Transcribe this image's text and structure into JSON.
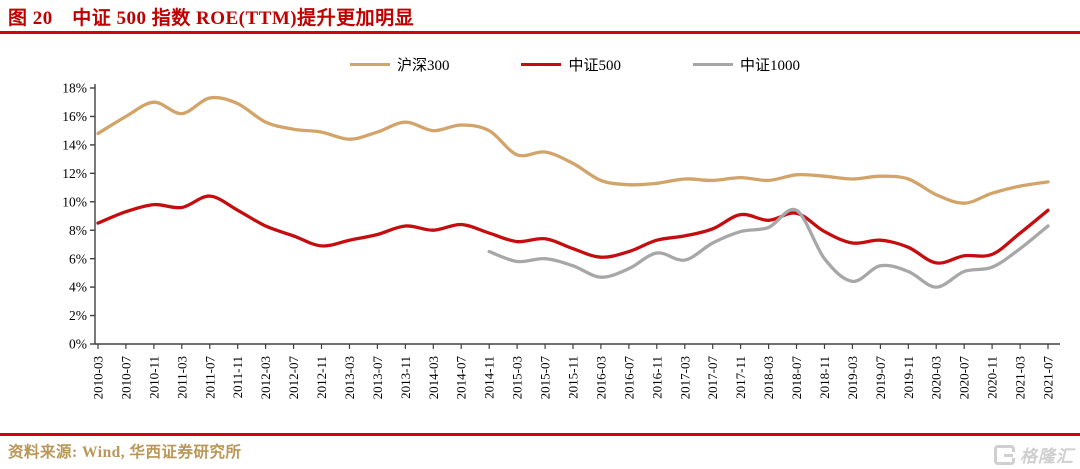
{
  "page": {
    "title": "图 20　中证 500 指数 ROE(TTM)提升更加明显"
  },
  "footer": {
    "source": "资料来源: Wind, 华西证券研究所"
  },
  "watermark": {
    "text": "格隆汇"
  },
  "colors": {
    "title_red": "#C00000",
    "rule_red": "#D40404",
    "axis_gray": "#404040",
    "source_gold": "#BA9657",
    "watermark_gray": "#CFCFCF"
  },
  "chart_data": {
    "type": "line",
    "title": "中证500指数ROE(TTM)提升更加明显",
    "xlabel": "",
    "ylabel": "",
    "y_format": "percent",
    "ylim": [
      0,
      18
    ],
    "ytick_step": 2,
    "ytick_labels": [
      "0%",
      "2%",
      "4%",
      "6%",
      "8%",
      "10%",
      "12%",
      "14%",
      "16%",
      "18%"
    ],
    "grid": false,
    "legend_position": "top-center",
    "x": [
      "2010-03",
      "2010-07",
      "2010-11",
      "2011-03",
      "2011-07",
      "2011-11",
      "2012-03",
      "2012-07",
      "2012-11",
      "2013-03",
      "2013-07",
      "2013-11",
      "2014-03",
      "2014-07",
      "2014-11",
      "2015-03",
      "2015-07",
      "2015-11",
      "2016-03",
      "2016-07",
      "2016-11",
      "2017-03",
      "2017-07",
      "2017-11",
      "2018-03",
      "2018-07",
      "2018-11",
      "2019-03",
      "2019-07",
      "2019-11",
      "2020-03",
      "2020-07",
      "2020-11",
      "2021-03",
      "2021-07"
    ],
    "series": [
      {
        "name": "沪深300",
        "color": "#D2A469",
        "values": [
          14.8,
          16.0,
          17.0,
          16.2,
          17.3,
          16.9,
          15.6,
          15.1,
          14.9,
          14.4,
          14.9,
          15.6,
          15.0,
          15.4,
          15.0,
          13.3,
          13.5,
          12.7,
          11.5,
          11.2,
          11.3,
          11.6,
          11.5,
          11.7,
          11.5,
          11.9,
          11.8,
          11.6,
          11.8,
          11.6,
          10.5,
          9.9,
          10.6,
          11.1,
          11.4
        ]
      },
      {
        "name": "中证500",
        "color": "#C50D0F",
        "values": [
          8.5,
          9.3,
          9.8,
          9.6,
          10.4,
          9.4,
          8.3,
          7.6,
          6.9,
          7.3,
          7.7,
          8.3,
          8.0,
          8.4,
          7.8,
          7.2,
          7.4,
          6.7,
          6.1,
          6.5,
          7.3,
          7.6,
          8.1,
          9.1,
          8.7,
          9.2,
          7.9,
          7.1,
          7.3,
          6.8,
          5.7,
          6.2,
          6.3,
          7.8,
          9.4
        ]
      },
      {
        "name": "中证1000",
        "color": "#A7A7A7",
        "values": [
          null,
          null,
          null,
          null,
          null,
          null,
          null,
          null,
          null,
          null,
          null,
          null,
          null,
          null,
          6.5,
          5.8,
          6.0,
          5.5,
          4.7,
          5.3,
          6.4,
          5.9,
          7.1,
          7.9,
          8.2,
          9.4,
          6.0,
          4.4,
          5.5,
          5.1,
          4.0,
          5.1,
          5.4,
          6.7,
          8.3
        ]
      }
    ]
  }
}
